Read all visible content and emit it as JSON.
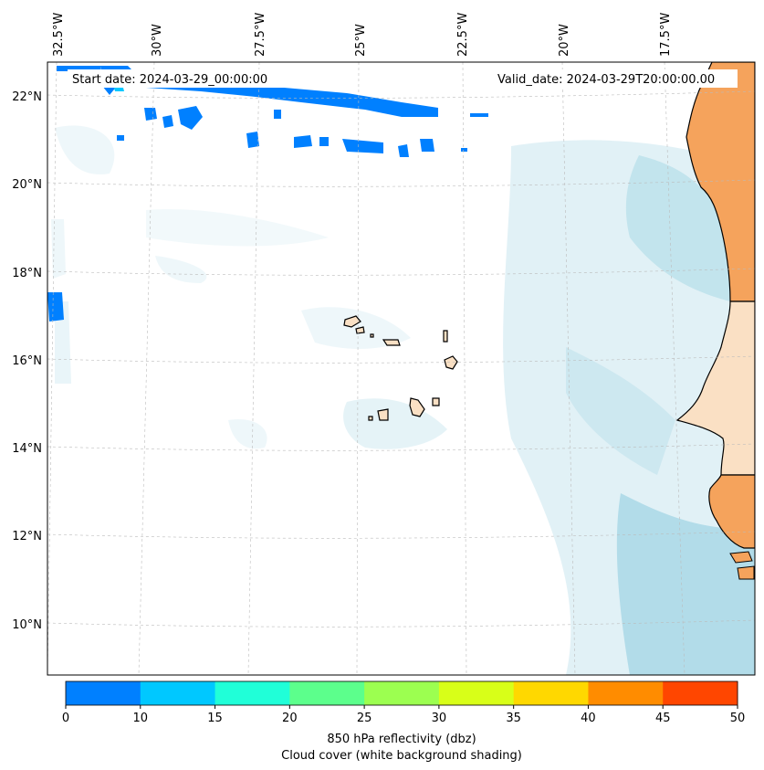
{
  "map": {
    "start_label": "Start date: 2024-03-29_00:00:00",
    "valid_label": "Valid_date: 2024-03-29T20:00:00.00",
    "lon_labels": [
      "32.5°W",
      "30°W",
      "27.5°W",
      "25°W",
      "22.5°W",
      "20°W",
      "17.5°W"
    ],
    "lat_labels": [
      "22°N",
      "20°N",
      "18°N",
      "16°N",
      "14°N",
      "12°N",
      "10°N"
    ],
    "land_color": "#f5a35c",
    "land_light_color": "#fae0c4",
    "cloud_color": "#a9d8e6"
  },
  "colorbar": {
    "bounds": [
      0,
      10,
      15,
      20,
      25,
      30,
      35,
      40,
      45,
      50
    ],
    "tick_labels": [
      "0",
      "10",
      "15",
      "20",
      "25",
      "30",
      "35",
      "40",
      "45",
      "50"
    ],
    "colors": [
      "#0080ff",
      "#00c8ff",
      "#20ffd8",
      "#5cff8c",
      "#9cff50",
      "#d8ff18",
      "#ffd800",
      "#ff8c00",
      "#ff4600"
    ],
    "label_line1": "850 hPa reflectivity (dbz)",
    "label_line2": "Cloud cover (white background shading)"
  }
}
